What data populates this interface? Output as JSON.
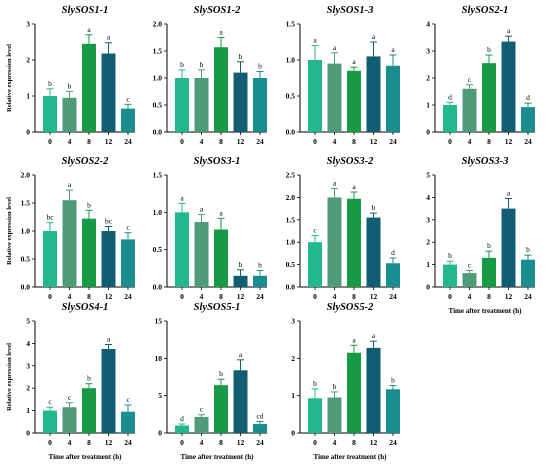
{
  "figure": {
    "ylabel": "Relative expression level",
    "xlabel": "Time after treatment (h)"
  },
  "colors": [
    "#22b88e",
    "#4f9a78",
    "#179a45",
    "#115e72",
    "#1a8e8e"
  ],
  "chart_data": [
    {
      "type": "bar",
      "title": "SlySOS1-1",
      "categories": [
        "0",
        "4",
        "8",
        "12",
        "24"
      ],
      "values": [
        1.0,
        0.95,
        2.45,
        2.18,
        0.65
      ],
      "errors": [
        0.2,
        0.18,
        0.25,
        0.3,
        0.12
      ],
      "letters": [
        "b",
        "b",
        "a",
        "a",
        "c"
      ],
      "ylim": [
        0,
        3.0
      ],
      "yticks": [
        "0",
        "1",
        "2",
        "3"
      ],
      "ylabel": "Relative expression level",
      "xlabel": ""
    },
    {
      "type": "bar",
      "title": "SlySOS1-2",
      "categories": [
        "0",
        "4",
        "8",
        "12",
        "24"
      ],
      "values": [
        1.0,
        1.0,
        1.57,
        1.1,
        1.0
      ],
      "errors": [
        0.15,
        0.15,
        0.18,
        0.2,
        0.12
      ],
      "letters": [
        "b",
        "b",
        "a",
        "b",
        "b"
      ],
      "ylim": [
        0,
        2.0
      ],
      "yticks": [
        "0.0",
        "0.5",
        "1.0",
        "1.5",
        "2.0"
      ],
      "ylabel": "",
      "xlabel": ""
    },
    {
      "type": "bar",
      "title": "SlySOS1-3",
      "categories": [
        "0",
        "4",
        "8",
        "12",
        "24"
      ],
      "values": [
        1.0,
        0.95,
        0.85,
        1.05,
        0.92
      ],
      "errors": [
        0.2,
        0.15,
        0.05,
        0.2,
        0.15
      ],
      "letters": [
        "a",
        "a",
        "a",
        "a",
        "a"
      ],
      "ylim": [
        0,
        1.5
      ],
      "yticks": [
        "0.0",
        "0.5",
        "1.0",
        "1.5"
      ],
      "ylabel": "",
      "xlabel": ""
    },
    {
      "type": "bar",
      "title": "SlySOS2-1",
      "categories": [
        "0",
        "4",
        "8",
        "12",
        "24"
      ],
      "values": [
        1.0,
        1.6,
        2.55,
        3.35,
        0.92
      ],
      "errors": [
        0.1,
        0.15,
        0.3,
        0.2,
        0.15
      ],
      "letters": [
        "d",
        "c",
        "b",
        "a",
        "d"
      ],
      "ylim": [
        0,
        4.0
      ],
      "yticks": [
        "0",
        "1",
        "2",
        "3",
        "4"
      ],
      "ylabel": "",
      "xlabel": ""
    },
    {
      "type": "bar",
      "title": "SlySOS2-2",
      "categories": [
        "0",
        "4",
        "8",
        "12",
        "24"
      ],
      "values": [
        1.0,
        1.55,
        1.22,
        1.0,
        0.85
      ],
      "errors": [
        0.15,
        0.18,
        0.15,
        0.08,
        0.12
      ],
      "letters": [
        "bc",
        "a",
        "b",
        "bc",
        "c"
      ],
      "ylim": [
        0,
        2.0
      ],
      "yticks": [
        "0.0",
        "0.5",
        "1.0",
        "1.5",
        "2.0"
      ],
      "ylabel": "Relative expression level",
      "xlabel": ""
    },
    {
      "type": "bar",
      "title": "SlySOS3-1",
      "categories": [
        "0",
        "4",
        "8",
        "12",
        "24"
      ],
      "values": [
        1.0,
        0.87,
        0.77,
        0.15,
        0.15
      ],
      "errors": [
        0.12,
        0.1,
        0.15,
        0.08,
        0.07
      ],
      "letters": [
        "a",
        "a",
        "a",
        "b",
        "b"
      ],
      "ylim": [
        0,
        1.5
      ],
      "yticks": [
        "0.0",
        "0.5",
        "1.0",
        "1.5"
      ],
      "ylabel": "",
      "xlabel": ""
    },
    {
      "type": "bar",
      "title": "SlySOS3-2",
      "categories": [
        "0",
        "4",
        "8",
        "12",
        "24"
      ],
      "values": [
        1.0,
        2.0,
        1.97,
        1.55,
        0.53
      ],
      "errors": [
        0.15,
        0.2,
        0.15,
        0.1,
        0.12
      ],
      "letters": [
        "c",
        "a",
        "a",
        "b",
        "d"
      ],
      "ylim": [
        0,
        2.5
      ],
      "yticks": [
        "0.0",
        "0.5",
        "1.0",
        "1.5",
        "2.0",
        "2.5"
      ],
      "ylabel": "",
      "xlabel": ""
    },
    {
      "type": "bar",
      "title": "SlySOS3-3",
      "categories": [
        "0",
        "4",
        "8",
        "12",
        "24"
      ],
      "values": [
        1.0,
        0.62,
        1.3,
        3.5,
        1.22
      ],
      "errors": [
        0.15,
        0.12,
        0.3,
        0.45,
        0.2
      ],
      "letters": [
        "b",
        "c",
        "b",
        "a",
        "b"
      ],
      "ylim": [
        0,
        5.0
      ],
      "yticks": [
        "0",
        "1",
        "2",
        "3",
        "4",
        "5"
      ],
      "ylabel": "",
      "xlabel": "Time after treatment (h)"
    },
    {
      "type": "bar",
      "title": "SlySOS4-1",
      "categories": [
        "0",
        "4",
        "8",
        "12",
        "24"
      ],
      "values": [
        1.0,
        1.15,
        2.0,
        3.75,
        0.95
      ],
      "errors": [
        0.15,
        0.2,
        0.2,
        0.2,
        0.3
      ],
      "letters": [
        "c",
        "c",
        "b",
        "a",
        "c"
      ],
      "ylim": [
        0,
        5.0
      ],
      "yticks": [
        "0",
        "1",
        "2",
        "3",
        "4",
        "5"
      ],
      "ylabel": "Relative expression level",
      "xlabel": "Time after treatment (h)"
    },
    {
      "type": "bar",
      "title": "SlySOS5-1",
      "categories": [
        "0",
        "4",
        "8",
        "12",
        "24"
      ],
      "values": [
        1.0,
        2.15,
        6.4,
        8.4,
        1.2
      ],
      "errors": [
        0.2,
        0.3,
        0.8,
        1.4,
        0.35
      ],
      "letters": [
        "d",
        "c",
        "b",
        "a",
        "cd"
      ],
      "ylim": [
        0,
        15
      ],
      "yticks": [
        "0",
        "5",
        "10",
        "15"
      ],
      "ylabel": "",
      "xlabel": "Time after treatment (h)"
    },
    {
      "type": "bar",
      "title": "SlySOS5-2",
      "categories": [
        "0",
        "4",
        "8",
        "12",
        "24"
      ],
      "values": [
        0.93,
        0.95,
        2.15,
        2.28,
        1.17
      ],
      "errors": [
        0.25,
        0.15,
        0.2,
        0.18,
        0.1
      ],
      "letters": [
        "b",
        "b",
        "a",
        "a",
        "b"
      ],
      "ylim": [
        0,
        3.0
      ],
      "yticks": [
        "0",
        "1",
        "2",
        "3"
      ],
      "ylabel": "",
      "xlabel": "Time after treatment (h)"
    }
  ]
}
